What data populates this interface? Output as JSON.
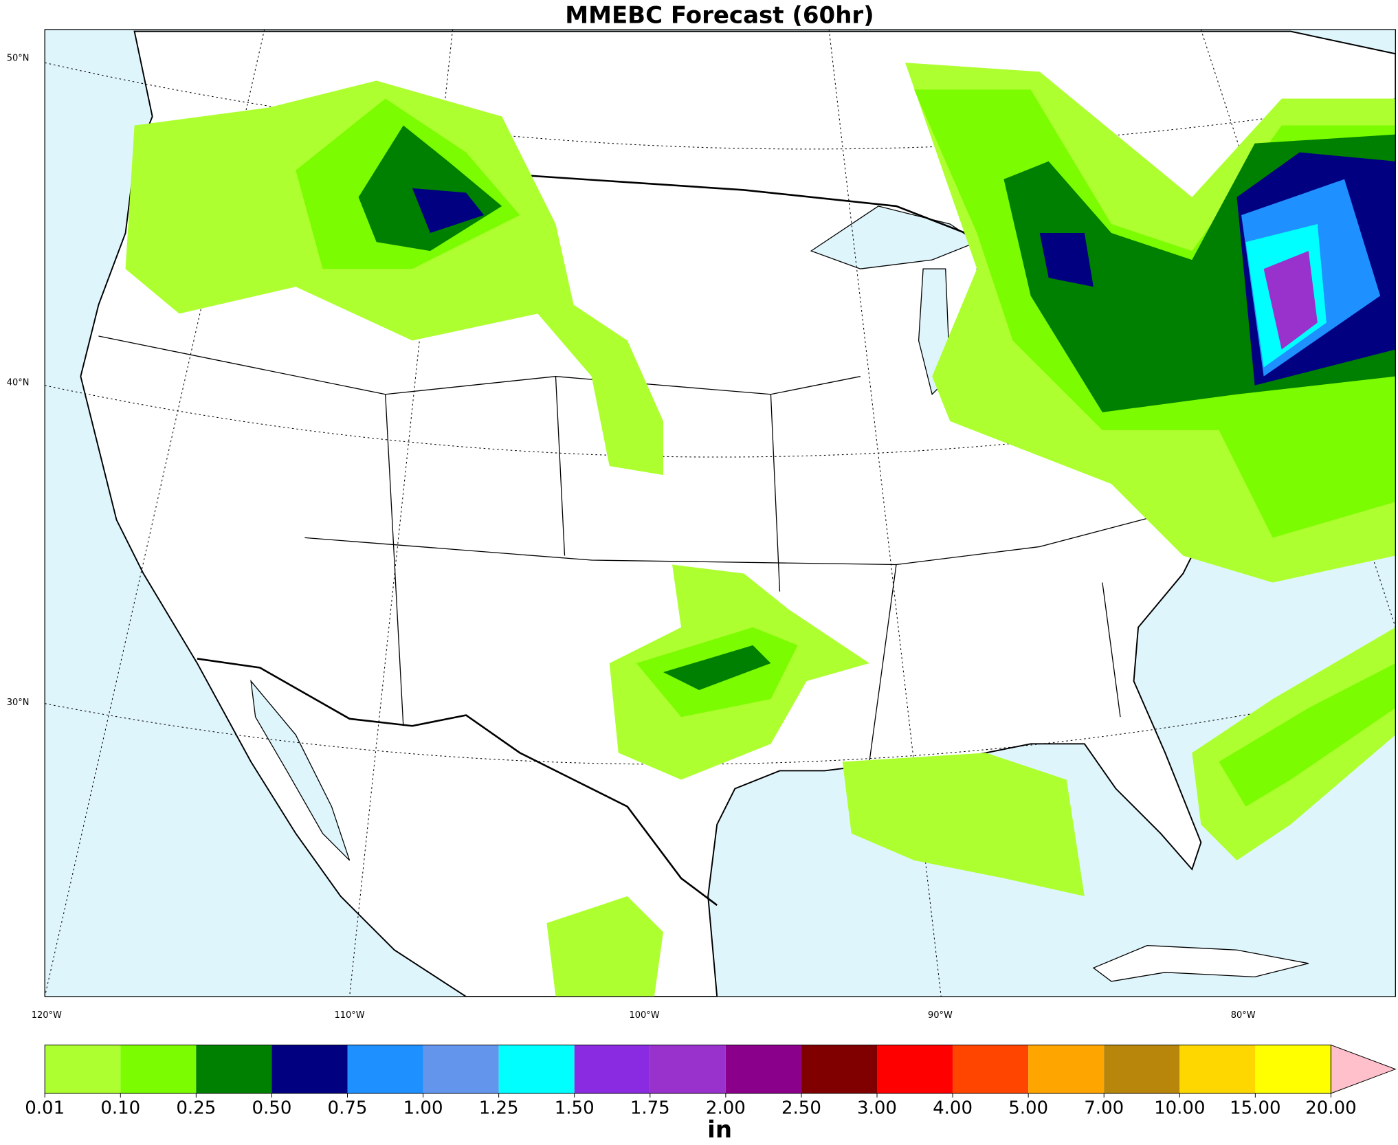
{
  "title": "MMEBC Forecast (60hr)",
  "map": {
    "lat_labels": [
      "50°N",
      "40°N",
      "30°N"
    ],
    "lon_labels": [
      "120°W",
      "110°W",
      "100°W",
      "90°W",
      "80°W"
    ]
  },
  "colorbar": {
    "label": "in",
    "levels": [
      "0.01",
      "0.10",
      "0.25",
      "0.50",
      "0.75",
      "1.00",
      "1.25",
      "1.50",
      "1.75",
      "2.00",
      "2.50",
      "3.00",
      "4.00",
      "5.00",
      "7.00",
      "10.00",
      "15.00",
      "20.00"
    ],
    "colors": [
      "#adff2f",
      "#7cfc00",
      "#008000",
      "#000080",
      "#1e90ff",
      "#6495ed",
      "#00ffff",
      "#8a2be2",
      "#9932cc",
      "#8b008b",
      "#800000",
      "#ff0000",
      "#ff4500",
      "#ffa500",
      "#b8860b",
      "#ffd700",
      "#ffff00",
      "#ffc0cb"
    ]
  }
}
